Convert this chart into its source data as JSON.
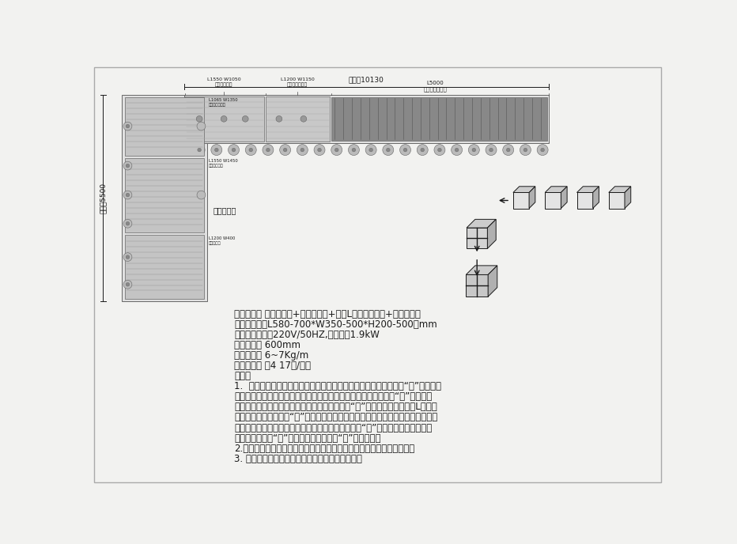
{
  "bg_color": "#f2f2f0",
  "machine_name_label": "机器名称： 直线角边机+侧边封筱机+自动L型角边封筱机+侧边封筱机",
  "paper_box_label": "适用纸筱：（L580-700*W350-500*H200-500）mm",
  "power_label": "电源功率：单相220V/50HZ,总功率坩1.9kW",
  "table_height_label": "台面高度： 600mm",
  "air_label": "使用气源： 6~7Kg/m",
  "belt_speed_label": "皮带速度： 坩4 17米/分钟",
  "note_label": "说明：",
  "note1": "1.  人工将产品装筱后送入一字封筱机，机器自动完成纸筱长度上下“一”字封筱效",
  "note1b": "果。进入直线角边封筱机，完成纸筱长度上下四处边角封筱，达成“三”字封筱效",
  "note1c": "果。进入侧边封筱机，完成纸筱长度两侧边上部“一”字封筱效果。后进入L型角边",
  "note1d": "封筱机，完成纸筱宽度“三”字型封筱效果（由于纸筱长度限制，最多中间加一组机",
  "note1e": "芯）。后再进入侧边封筱机，封纸筱宽度两侧边上部“一”字封筱效果。最终封筱",
  "note1f": "效果为纸筱上下“田”字型封筱，侧边上部“口”字型封筱。",
  "note2": "2.适用于同一时间，同一规格封筱。更换规格时，手工调节宽度和高度。",
  "note3": "3. 示意图上标准尺寸数据提供参考，以实物为准。",
  "total_length_label": "总长：10130",
  "total_width_label": "总宽：5500",
  "forward_conveyor_label": "正向输送机",
  "label_L1550_W1050": "L1550 W1050\n超级封筱机组",
  "label_L1200_W1150": "L1200 W1150\n四边角边封筱机",
  "label_L5000": "L5000\n皮带输送输送机",
  "label_L1065_W1350": "L1065 W1350\n三边角边封筱机",
  "label_L1550_W1450": "L1550 W1450\n超级封筱机组",
  "label_L1200_W400": "L1200 W400\n皮带输送机",
  "belt_speed_label2": "皮带速度： 坩4 17米/分钟"
}
